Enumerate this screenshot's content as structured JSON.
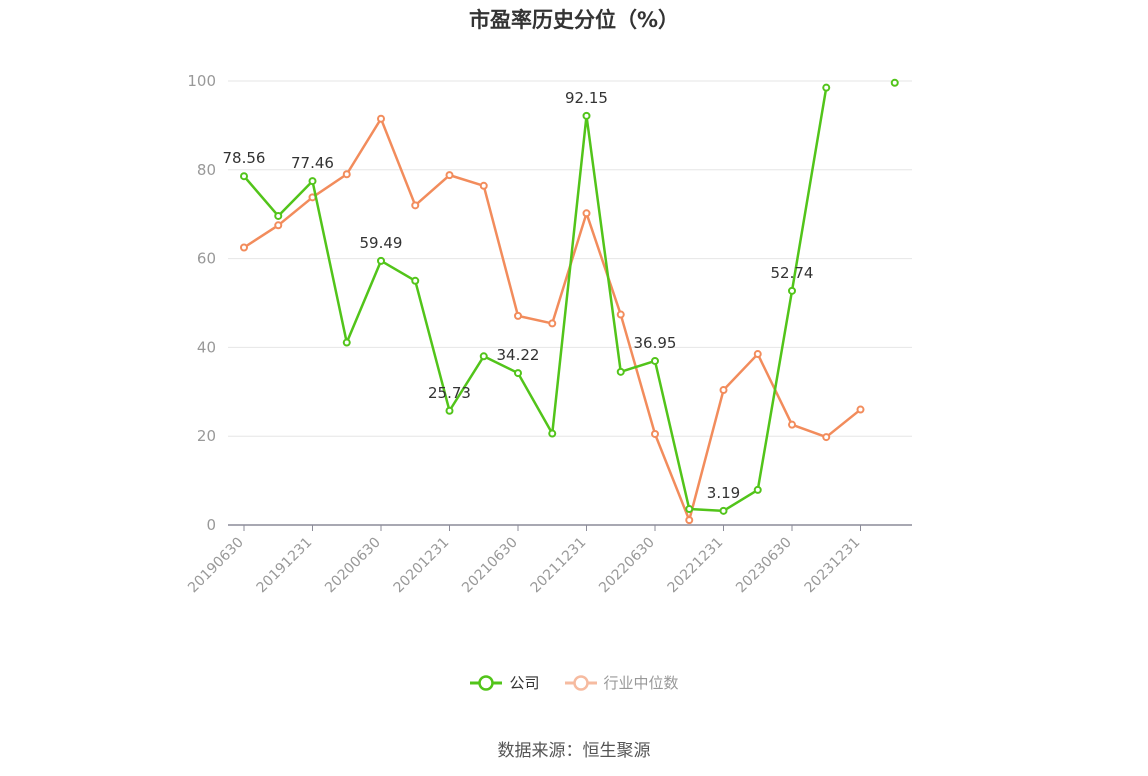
{
  "chart_data": {
    "type": "line",
    "title": "市盈率历史分位（%）",
    "x": [
      "20190630",
      "20190930",
      "20191231",
      "20200331",
      "20200630",
      "20200930",
      "20201231",
      "20210331",
      "20210630",
      "20210930",
      "20211231",
      "20220331",
      "20220630",
      "20220930",
      "20221231",
      "20230331",
      "20230630",
      "20230930",
      "20231231",
      "20240331"
    ],
    "x_tick_labels": [
      "20190630",
      "20191231",
      "20200630",
      "20201231",
      "20210630",
      "20211231",
      "20220630",
      "20221231",
      "20230630",
      "20231231"
    ],
    "y_ticks": [
      0,
      20,
      40,
      60,
      80,
      100
    ],
    "ylim": [
      0,
      100
    ],
    "grid": true,
    "legend_position": "bottom",
    "series": [
      {
        "name": "公司",
        "color": "#52c41a",
        "values": [
          78.56,
          69.6,
          77.46,
          41.1,
          59.49,
          55.0,
          25.73,
          38.0,
          34.22,
          20.6,
          92.15,
          34.5,
          36.95,
          3.6,
          3.19,
          7.9,
          52.74,
          98.5,
          null,
          99.6
        ],
        "labels": {
          "0": "78.56",
          "2": "77.46",
          "4": "59.49",
          "6": "25.73",
          "8": "34.22",
          "10": "92.15",
          "12": "36.95",
          "14": "3.19",
          "16": "52.74"
        }
      },
      {
        "name": "行业中位数",
        "color": "#f28c5c",
        "values": [
          62.5,
          67.5,
          73.8,
          79.0,
          91.5,
          72.0,
          78.8,
          76.4,
          47.1,
          45.4,
          70.2,
          47.4,
          20.5,
          1.1,
          30.4,
          38.5,
          22.6,
          19.8,
          26.0,
          null
        ]
      }
    ]
  },
  "legend": {
    "company": "公司",
    "industry": "行业中位数"
  },
  "source": "数据来源：恒生聚源"
}
